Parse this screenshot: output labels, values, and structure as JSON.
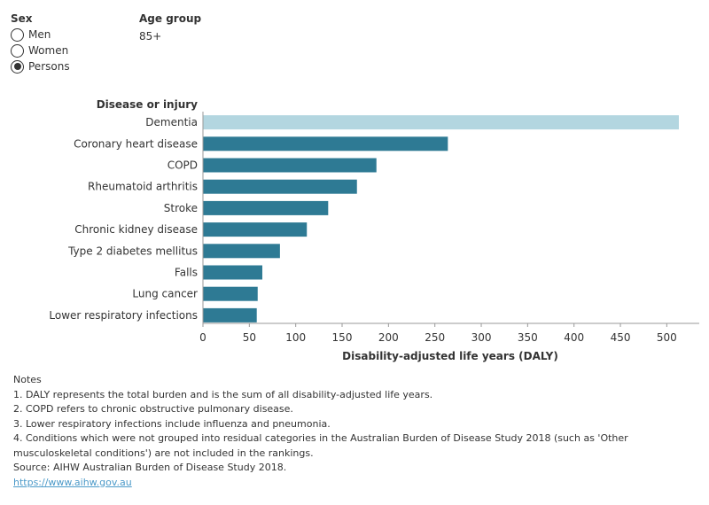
{
  "filters": {
    "sex": {
      "title": "Sex",
      "options": [
        {
          "label": "Men",
          "selected": false
        },
        {
          "label": "Women",
          "selected": false
        },
        {
          "label": "Persons",
          "selected": true
        }
      ]
    },
    "age_group": {
      "title": "Age group",
      "value": "85+"
    }
  },
  "chart_data": {
    "type": "bar",
    "orientation": "horizontal",
    "category_header": "Disease or injury",
    "categories": [
      "Dementia",
      "Coronary heart disease",
      "COPD",
      "Rheumatoid arthritis",
      "Stroke",
      "Chronic kidney disease",
      "Type 2 diabetes mellitus",
      "Falls",
      "Lung cancer",
      "Lower respiratory infections"
    ],
    "values": [
      513,
      264,
      187,
      166,
      135,
      112,
      83,
      64,
      59,
      58
    ],
    "bar_colors": [
      "#b3d6e0",
      "#2e7a94",
      "#2e7a94",
      "#2e7a94",
      "#2e7a94",
      "#2e7a94",
      "#2e7a94",
      "#2e7a94",
      "#2e7a94",
      "#2e7a94"
    ],
    "xlabel": "Disability-adjusted life years (DALY)",
    "ylabel": "",
    "xlim": [
      0,
      535
    ],
    "ticks": [
      0,
      50,
      100,
      150,
      200,
      250,
      300,
      350,
      400,
      450,
      500
    ],
    "grid": false,
    "axis_color": "#999999"
  },
  "notes": {
    "title": "Notes",
    "items": [
      "1. DALY represents the total burden and is the sum of all disability-adjusted life years.",
      "2. COPD refers to chronic obstructive pulmonary disease.",
      "3. Lower respiratory infections include influenza and pneumonia.",
      "4. Conditions which were not grouped into residual categories in the Australian Burden of Disease Study 2018 (such as 'Other musculoskeletal conditions') are not included in the rankings."
    ],
    "source": "Source: AIHW Australian Burden of Disease Study 2018.",
    "link": "https://www.aihw.gov.au"
  }
}
